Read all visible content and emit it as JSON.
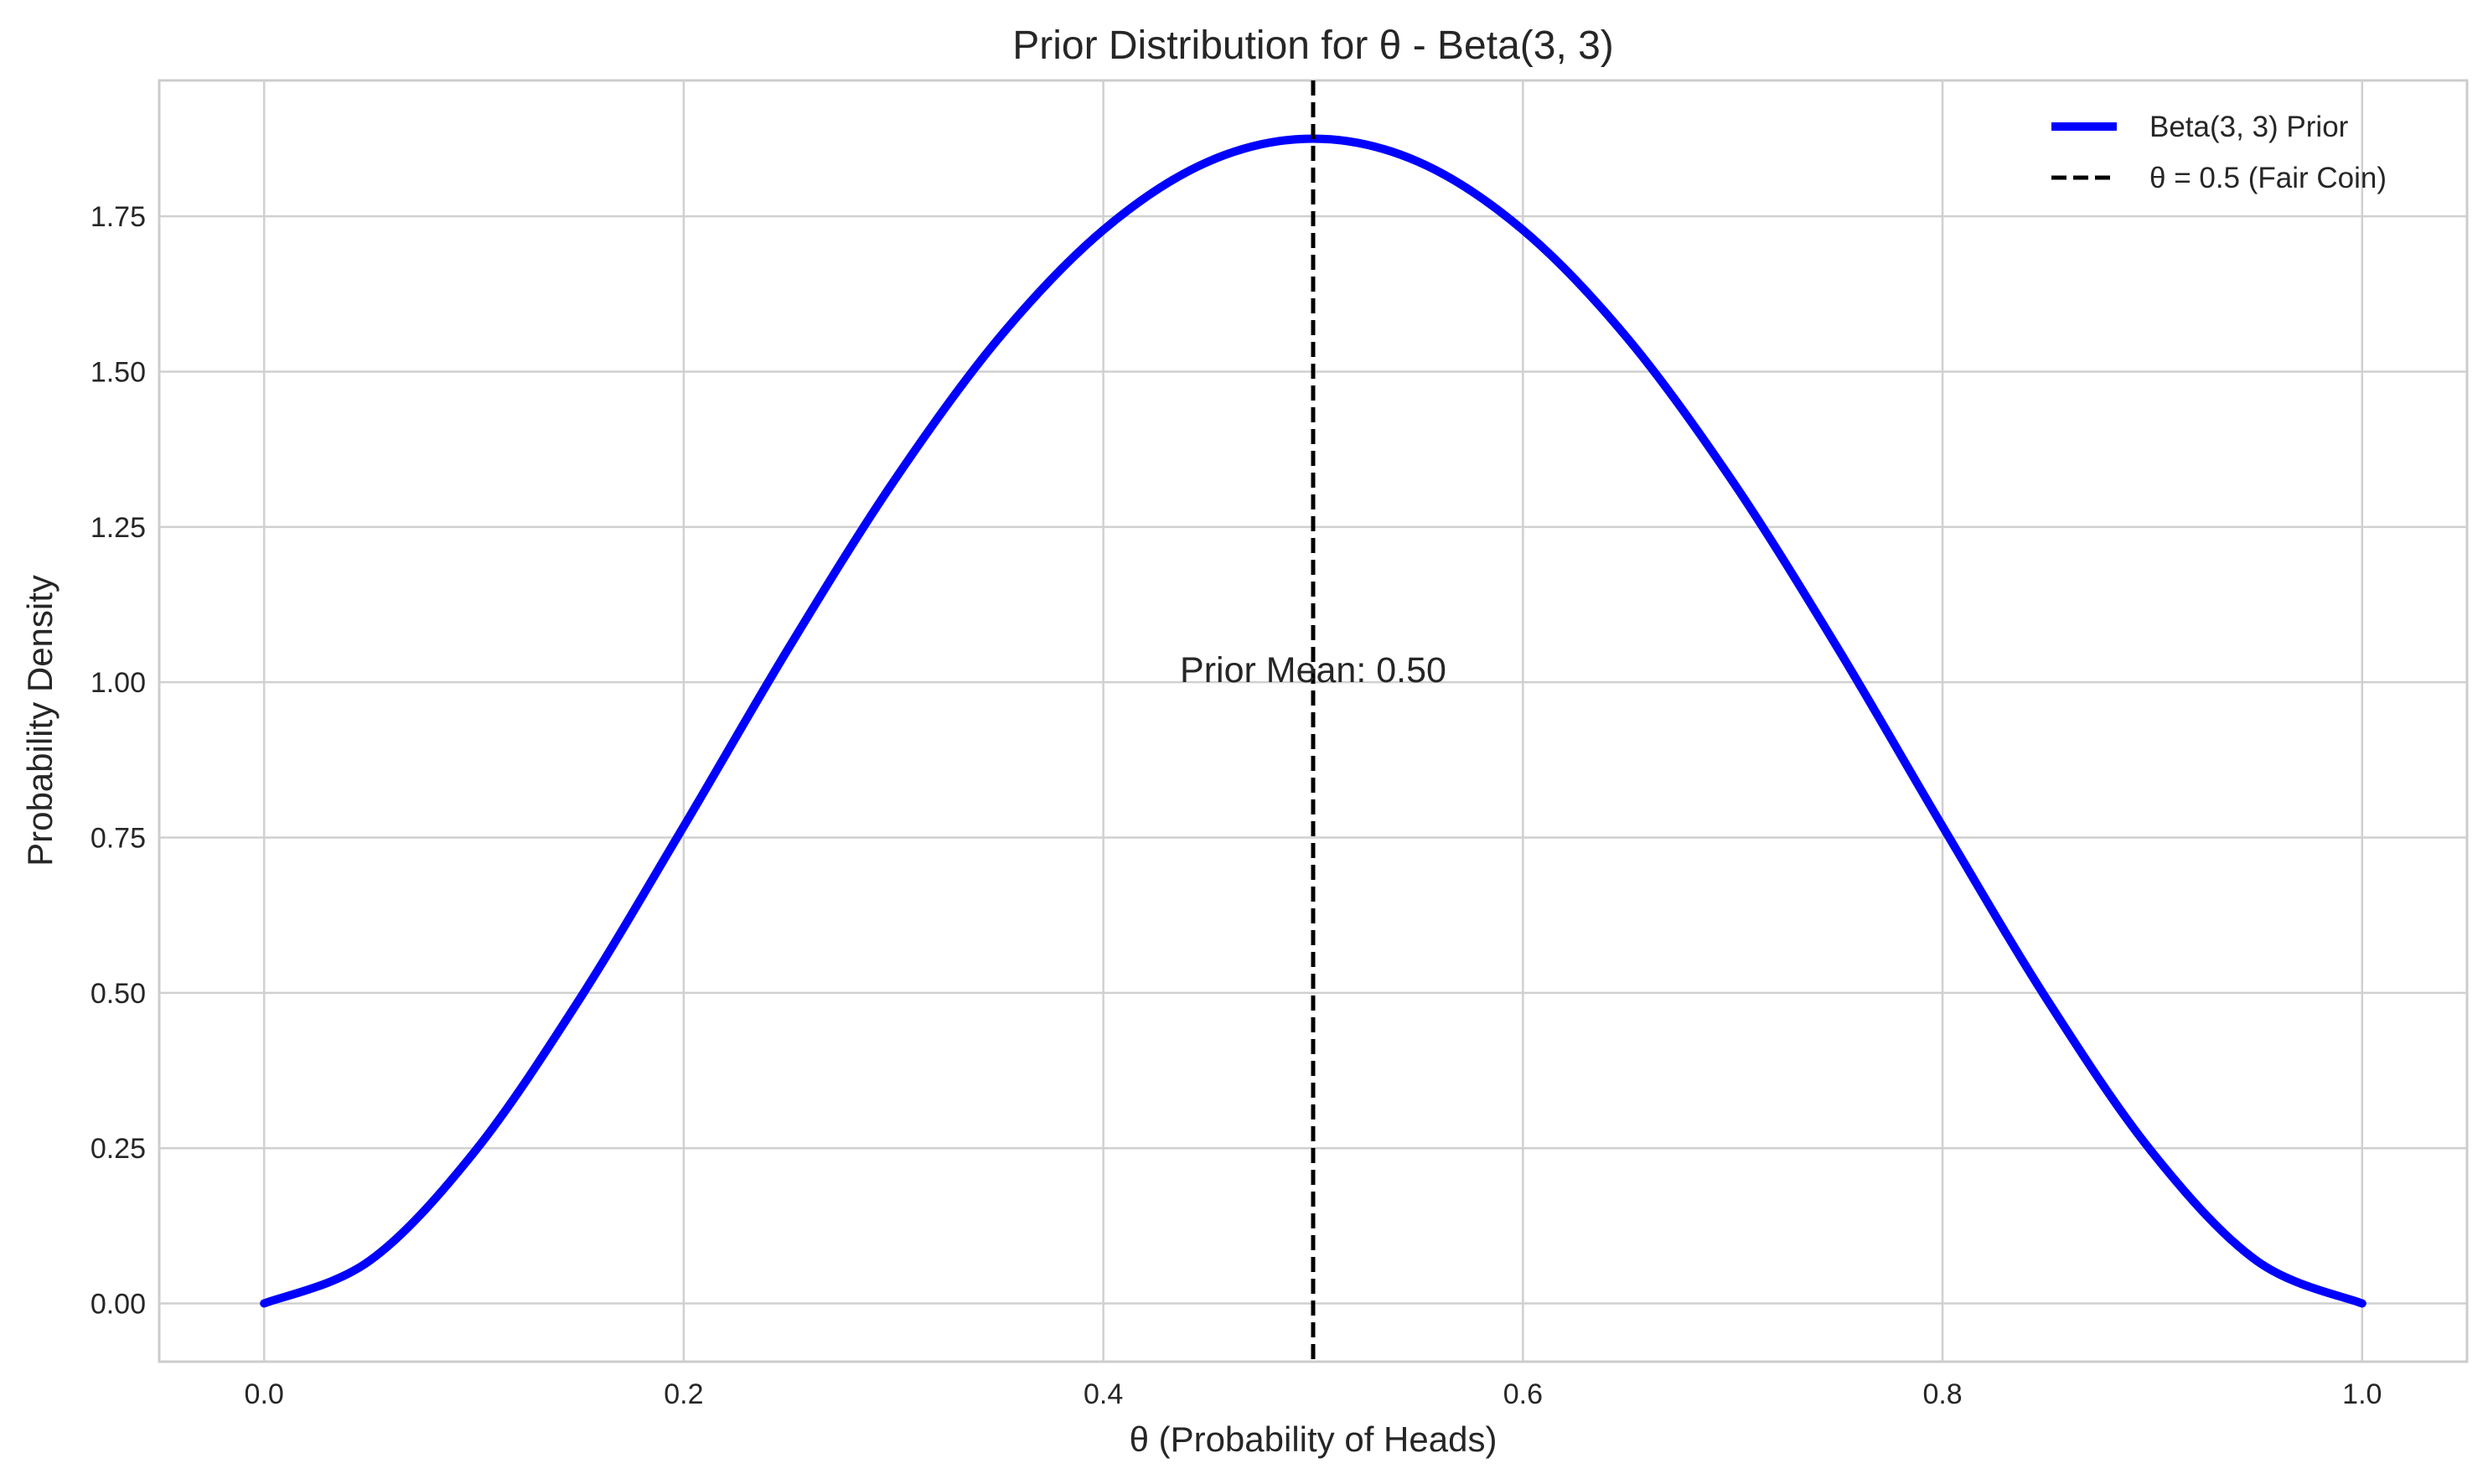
{
  "chart_data": {
    "type": "line",
    "title": "Prior Distribution for θ - Beta(3, 3)",
    "xlabel": "θ (Probability of Heads)",
    "ylabel": "Probability Density",
    "xlim": [
      -0.05,
      1.05
    ],
    "ylim": [
      -0.0937,
      1.9687
    ],
    "xticks": [
      0.0,
      0.2,
      0.4,
      0.6,
      0.8,
      1.0
    ],
    "xtick_labels": [
      "0.0",
      "0.2",
      "0.4",
      "0.6",
      "0.8",
      "1.0"
    ],
    "yticks": [
      0.0,
      0.25,
      0.5,
      0.75,
      1.0,
      1.25,
      1.5,
      1.75
    ],
    "ytick_labels": [
      "0.00",
      "0.25",
      "0.50",
      "0.75",
      "1.00",
      "1.25",
      "1.50",
      "1.75"
    ],
    "grid": true,
    "legend_position": "top-right",
    "series": [
      {
        "name": "Beta(3, 3) Prior",
        "color": "#0000ff",
        "style": "solid",
        "x": [
          0.0,
          0.05,
          0.1,
          0.15,
          0.2,
          0.25,
          0.3,
          0.35,
          0.4,
          0.45,
          0.5,
          0.55,
          0.6,
          0.65,
          0.7,
          0.75,
          0.8,
          0.85,
          0.9,
          0.95,
          1.0
        ],
        "y": [
          0.0,
          0.068,
          0.243,
          0.488,
          0.768,
          1.055,
          1.323,
          1.553,
          1.728,
          1.838,
          1.875,
          1.838,
          1.728,
          1.553,
          1.323,
          1.055,
          0.768,
          0.488,
          0.243,
          0.068,
          0.0
        ]
      }
    ],
    "reference_lines": [
      {
        "name": "θ = 0.5 (Fair Coin)",
        "x": 0.5,
        "color": "#000000",
        "style": "dashed"
      }
    ],
    "annotations": [
      {
        "text": "Prior Mean: 0.50",
        "x": 0.5,
        "y": 1.0
      }
    ]
  }
}
